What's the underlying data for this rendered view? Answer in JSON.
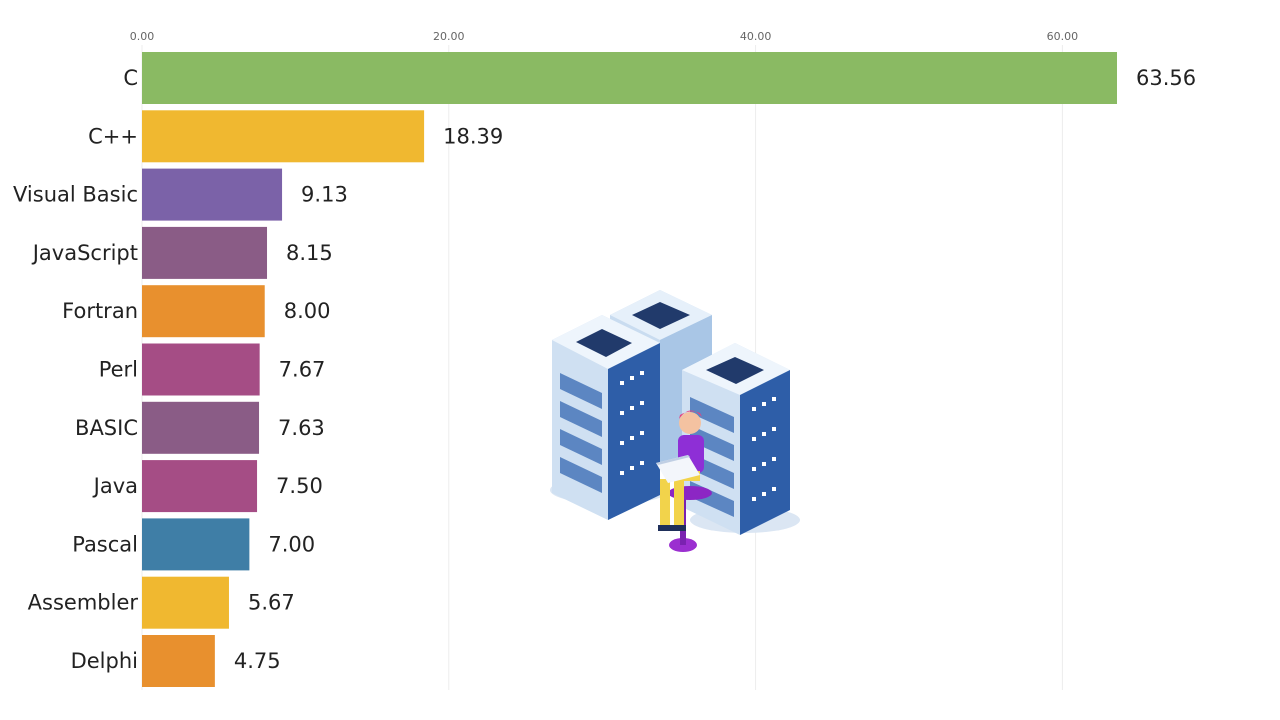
{
  "chart_data": {
    "type": "bar",
    "orientation": "horizontal",
    "title": "",
    "xlabel": "",
    "ylabel": "",
    "xlim": [
      0,
      63.56
    ],
    "x_ticks": [
      "0.00",
      "20.00",
      "40.00",
      "60.00"
    ],
    "x_tick_values": [
      0,
      20,
      40,
      60
    ],
    "grid": true,
    "categories": [
      "C",
      "C++",
      "Visual Basic",
      "JavaScript",
      "Fortran",
      "Perl",
      "BASIC",
      "Java",
      "Pascal",
      "Assembler",
      "Delphi"
    ],
    "values": [
      63.56,
      18.39,
      9.13,
      8.15,
      8.0,
      7.67,
      7.63,
      7.5,
      7.0,
      5.67,
      4.75
    ],
    "value_labels": [
      "63.56",
      "18.39",
      "9.13",
      "8.15",
      "8.00",
      "7.67",
      "7.63",
      "7.50",
      "7.00",
      "5.67",
      "4.75"
    ],
    "colors": [
      "#8aba63",
      "#f0b830",
      "#7b62a8",
      "#8a5c86",
      "#e8902e",
      "#a54d85",
      "#8a5c86",
      "#a54d85",
      "#3f7ea6",
      "#f0b830",
      "#e8902e"
    ]
  },
  "illustration": {
    "icon": "server-rack-person-laptop-icon"
  }
}
